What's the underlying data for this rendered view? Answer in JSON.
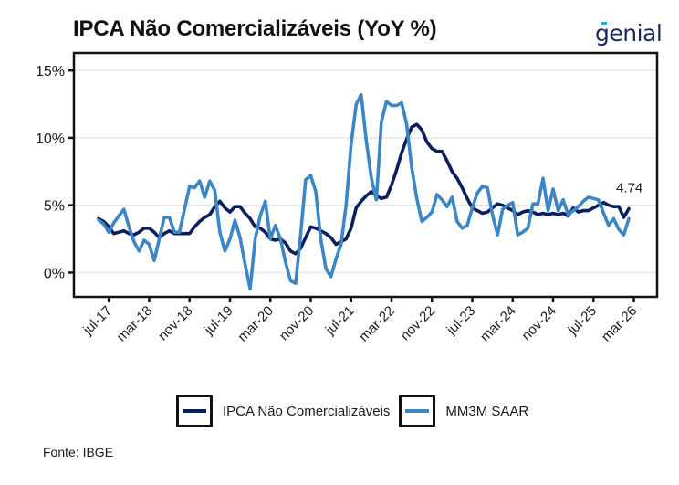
{
  "header": {
    "title": "IPCA Não Comercializáveis (YoY %)",
    "brand": "genial"
  },
  "footer": {
    "source": "Fonte: IBGE"
  },
  "colors": {
    "series_dark": "#0b1f5c",
    "series_light": "#3a86c6",
    "grid": "#e6e6e6",
    "axis": "#111111"
  },
  "chart_data": {
    "type": "line",
    "title": "IPCA Não Comercializáveis (YoY %)",
    "xlabel": "",
    "ylabel": "",
    "ylim": [
      -1.8,
      16.3
    ],
    "yticks": [
      0,
      5,
      10,
      15
    ],
    "ytick_labels": [
      "0%",
      "5%",
      "10%",
      "15%"
    ],
    "x_start": "may-17",
    "x_end": "feb-26",
    "xlim_months_from_start": [
      -4.9,
      110.6
    ],
    "xticks_months_from_start": [
      2,
      10,
      18,
      26,
      34,
      42,
      50,
      58,
      66,
      74,
      82,
      90,
      98,
      106
    ],
    "xtick_labels": [
      "jul-17",
      "mar-18",
      "nov-18",
      "jul-19",
      "mar-20",
      "nov-20",
      "jul-21",
      "mar-22",
      "nov-22",
      "jul-23",
      "mar-24",
      "nov-24",
      "jul-25",
      "mar-26"
    ],
    "grid": "horizontal",
    "legend": "bottom",
    "last_value_label": "4.74",
    "series": [
      {
        "name": "IPCA Não Comercializáveis",
        "color_key": "series_dark",
        "values": [
          4.0,
          3.8,
          3.4,
          2.9,
          3.0,
          3.1,
          2.9,
          2.8,
          3.0,
          3.3,
          3.3,
          3.0,
          2.6,
          2.9,
          3.1,
          2.9,
          2.9,
          2.9,
          2.9,
          3.4,
          3.8,
          4.1,
          4.3,
          4.9,
          5.3,
          4.8,
          4.5,
          4.9,
          4.9,
          4.4,
          4.0,
          3.4,
          3.3,
          3.0,
          2.5,
          2.4,
          2.5,
          2.2,
          1.6,
          1.4,
          1.8,
          2.6,
          3.4,
          3.3,
          3.1,
          2.9,
          2.6,
          2.1,
          2.3,
          2.5,
          3.3,
          4.8,
          5.3,
          5.7,
          6.0,
          5.7,
          5.5,
          5.6,
          6.5,
          7.6,
          8.9,
          9.9,
          10.8,
          11.0,
          10.6,
          9.7,
          9.2,
          9.0,
          9.0,
          8.3,
          7.5,
          7.0,
          6.3,
          5.5,
          4.8,
          4.6,
          4.4,
          4.5,
          4.8,
          5.1,
          5.0,
          4.8,
          4.6,
          4.3,
          4.5,
          4.6,
          4.5,
          4.3,
          4.4,
          4.3,
          4.4,
          4.3,
          4.4,
          4.2,
          4.8,
          4.5,
          4.6,
          4.6,
          4.8,
          5.0,
          5.2,
          5.0,
          4.9,
          4.9,
          4.1,
          4.74
        ]
      },
      {
        "name": "MM3M SAAR",
        "color_key": "series_light",
        "values": [
          3.9,
          3.6,
          3.0,
          3.7,
          4.2,
          4.7,
          3.4,
          2.3,
          1.6,
          2.4,
          2.1,
          0.9,
          2.5,
          4.1,
          4.1,
          3.0,
          3.0,
          4.7,
          6.4,
          6.3,
          6.8,
          5.6,
          6.8,
          6.1,
          3.0,
          1.6,
          2.5,
          3.9,
          2.6,
          0.6,
          -1.2,
          2.5,
          4.2,
          5.3,
          2.5,
          3.5,
          2.5,
          0.8,
          -0.6,
          -0.8,
          2.8,
          6.9,
          7.2,
          6.0,
          2.5,
          0.3,
          -0.3,
          1.0,
          2.1,
          5.0,
          9.5,
          12.5,
          13.2,
          9.8,
          7.0,
          5.4,
          11.2,
          12.7,
          12.4,
          12.4,
          12.6,
          11.0,
          7.8,
          5.5,
          3.8,
          4.1,
          4.5,
          5.8,
          5.4,
          4.9,
          5.6,
          3.8,
          3.3,
          3.5,
          4.8,
          5.9,
          6.4,
          6.3,
          4.3,
          2.8,
          4.7,
          5.0,
          5.2,
          2.8,
          3.0,
          3.3,
          5.1,
          5.1,
          7.0,
          4.6,
          6.2,
          4.6,
          5.4,
          4.3,
          4.6,
          4.9,
          5.3,
          5.6,
          5.5,
          5.4,
          4.4,
          3.5,
          4.0,
          3.2,
          2.8,
          4.0
        ]
      }
    ]
  },
  "legend": {
    "items": [
      {
        "label": "IPCA Não Comercializáveis",
        "color_key": "series_dark"
      },
      {
        "label": "MM3M SAAR",
        "color_key": "series_light"
      }
    ]
  }
}
